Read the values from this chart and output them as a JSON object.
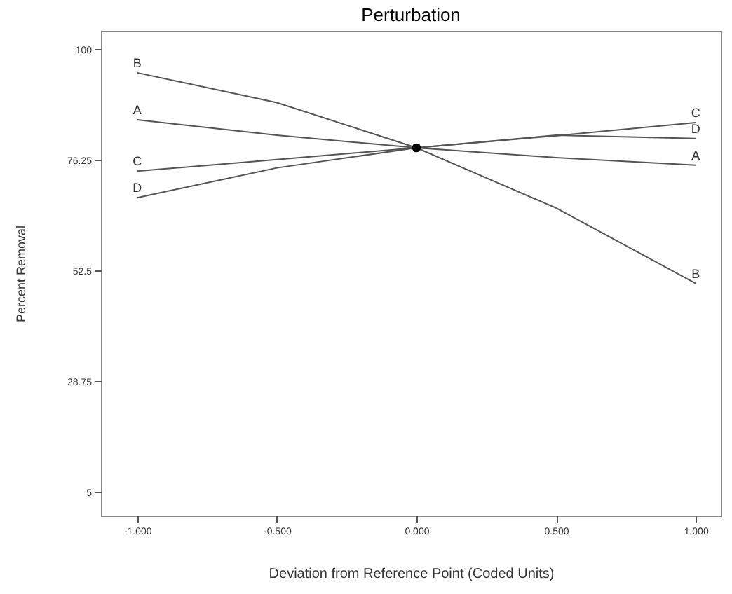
{
  "chart_data": {
    "type": "line",
    "title": "Perturbation",
    "xlabel": "Deviation from Reference Point (Coded Units)",
    "ylabel": "Percent Removal",
    "x": [
      -1,
      -0.5,
      0,
      0.5,
      1
    ],
    "series": [
      {
        "name": "A",
        "color": "#555555",
        "values": [
          84.9,
          81.6,
          78.9,
          76.8,
          75.2
        ]
      },
      {
        "name": "B",
        "color": "#555555",
        "values": [
          95.0,
          88.6,
          78.9,
          66.0,
          49.8
        ]
      },
      {
        "name": "C",
        "color": "#555555",
        "values": [
          73.9,
          76.4,
          78.9,
          81.5,
          84.3
        ]
      },
      {
        "name": "D",
        "color": "#555555",
        "values": [
          68.2,
          74.6,
          78.9,
          81.6,
          80.9
        ]
      },
      {
        "type": "scatter",
        "marker": "circle",
        "color": "#000000",
        "x": [
          0
        ],
        "values": [
          78.9
        ]
      }
    ],
    "xlim": [
      -1.13,
      1.09
    ],
    "ylim": [
      0,
      104
    ],
    "xticks": [
      {
        "value": -1,
        "label": "-1.000"
      },
      {
        "value": -0.5,
        "label": "-0.500"
      },
      {
        "value": 0,
        "label": "0.000"
      },
      {
        "value": 0.5,
        "label": "0.500"
      },
      {
        "value": 1,
        "label": "1.000"
      }
    ],
    "yticks": [
      5,
      28.75,
      52.5,
      76.25,
      100
    ],
    "grid": false,
    "marker": "none",
    "line_style": "solid"
  }
}
